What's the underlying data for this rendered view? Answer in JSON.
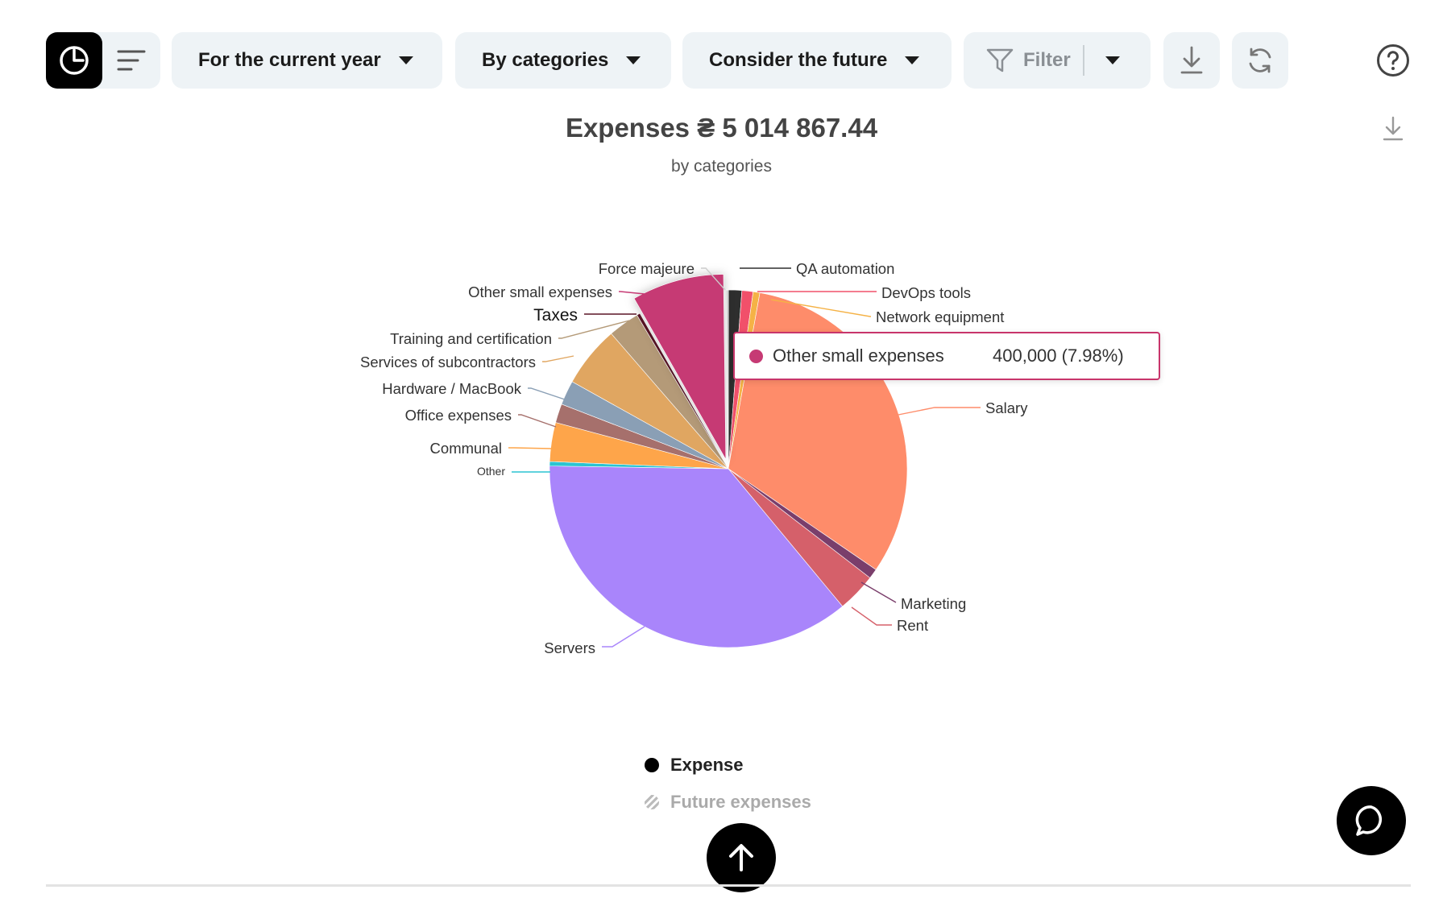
{
  "toolbar": {
    "period_label": "For the current year",
    "grouping_label": "By categories",
    "future_label": "Consider the future",
    "filter_label": "Filter"
  },
  "icons": {
    "pie_view": "pie-chart-icon",
    "list_view": "list-lines-icon",
    "filter": "funnel-icon",
    "download": "download-icon",
    "refresh": "refresh-icon",
    "help": "help-circle-icon",
    "chart_download": "download-icon",
    "scroll_top": "arrow-up-icon",
    "chat": "chat-bubble-icon"
  },
  "chart_data": {
    "type": "pie",
    "title": "Expenses ₴ 5 014 867.44",
    "subtitle": "by categories",
    "total": 5014867.44,
    "slices": [
      {
        "label": "QA automation",
        "value": 1.2,
        "color": "#2e2e2e"
      },
      {
        "label": "DevOps tools",
        "value": 1.0,
        "color": "#f1506a"
      },
      {
        "label": "Network equipment",
        "value": 0.6,
        "color": "#f5b246"
      },
      {
        "label": "Salary",
        "value": 31.5,
        "color": "#fe8c6a"
      },
      {
        "label": "Marketing",
        "value": 0.9,
        "color": "#7a3e6b"
      },
      {
        "label": "Rent",
        "value": 3.5,
        "color": "#d5606a"
      },
      {
        "label": "Servers",
        "value": 36.0,
        "color": "#a985fb"
      },
      {
        "label": "Other",
        "value": 0.4,
        "color": "#2bc4d2"
      },
      {
        "label": "Communal",
        "value": 3.5,
        "color": "#fea54a"
      },
      {
        "label": "Office expenses",
        "value": 1.7,
        "color": "#a6706c"
      },
      {
        "label": "Hardware / MacBook",
        "value": 2.2,
        "color": "#8a9fb5"
      },
      {
        "label": "Services of subcontractors",
        "value": 5.5,
        "color": "#e0a661"
      },
      {
        "label": "Training and certification",
        "value": 2.8,
        "color": "#b49a78"
      },
      {
        "label": "Taxes",
        "value": 0.3,
        "color": "#5a1526"
      },
      {
        "label": "Other small expenses",
        "value": 7.98,
        "color": "#c63a74"
      },
      {
        "label": "Force majeure",
        "value": 0.2,
        "color": "#cccccc"
      }
    ],
    "highlighted": "Other small expenses",
    "tooltip": {
      "label": "Other small expenses",
      "value": "400,000 (7.98%)"
    },
    "legend": [
      "Expense",
      "Future expenses"
    ]
  }
}
